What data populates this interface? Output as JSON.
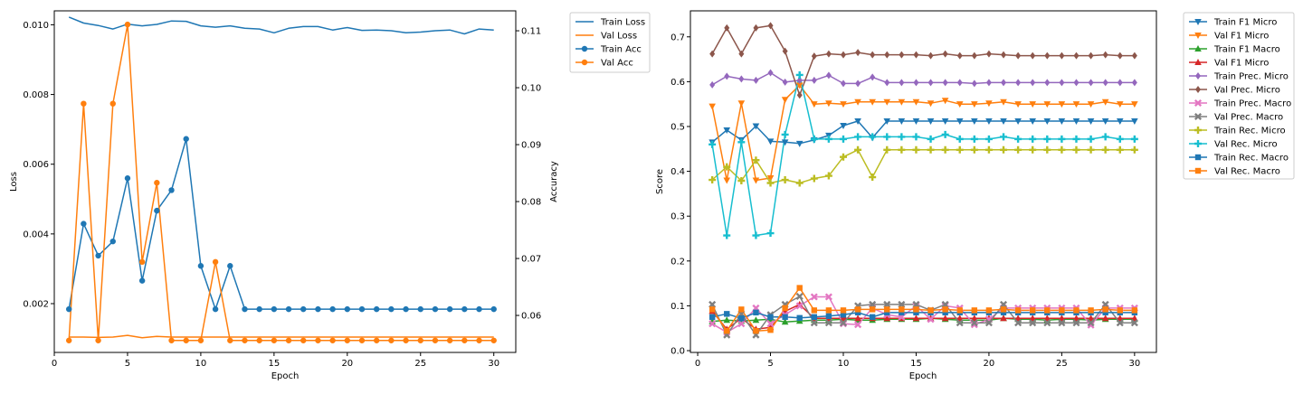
{
  "chart_data": [
    {
      "type": "line",
      "xlabel": "Epoch",
      "ylabel": "Loss",
      "y2label": "Accuracy",
      "xlim": [
        0,
        31.5
      ],
      "ylim": [
        0.0006,
        0.0104
      ],
      "y2lim": [
        0.0535,
        0.1135
      ],
      "xticks": [
        0,
        5,
        10,
        15,
        20,
        25,
        30
      ],
      "yticks": [
        0.002,
        0.004,
        0.006,
        0.008,
        0.01
      ],
      "ytick_labels": [
        "0.002",
        "0.004",
        "0.006",
        "0.008",
        "0.010"
      ],
      "y2ticks": [
        0.06,
        0.07,
        0.08,
        0.09,
        0.1,
        0.11
      ],
      "y2tick_labels": [
        "0.06",
        "0.07",
        "0.08",
        "0.09",
        "0.10",
        "0.11"
      ],
      "x": [
        1,
        2,
        3,
        4,
        5,
        6,
        7,
        8,
        9,
        10,
        11,
        12,
        13,
        14,
        15,
        16,
        17,
        18,
        19,
        20,
        21,
        22,
        23,
        24,
        25,
        26,
        27,
        28,
        29,
        30
      ],
      "legend_position": "outside-top-right",
      "series": [
        {
          "name": "Train Loss",
          "axis": "left",
          "color": "#1f77b4",
          "marker": "none",
          "values": [
            0.01022,
            0.01005,
            0.00998,
            0.00988,
            0.01002,
            0.00997,
            0.01001,
            0.01011,
            0.0101,
            0.00997,
            0.00993,
            0.00997,
            0.0099,
            0.00988,
            0.00977,
            0.0099,
            0.00995,
            0.00995,
            0.00985,
            0.00992,
            0.00984,
            0.00985,
            0.00983,
            0.00977,
            0.00979,
            0.00983,
            0.00985,
            0.00974,
            0.00988,
            0.00985
          ]
        },
        {
          "name": "Val Loss",
          "axis": "left",
          "color": "#ff7f0e",
          "marker": "none",
          "values": [
            0.00104,
            0.00104,
            0.00103,
            0.00104,
            0.00109,
            0.00102,
            0.00106,
            0.00104,
            0.00104,
            0.00104,
            0.00104,
            0.00104,
            0.00104,
            0.00104,
            0.00104,
            0.00104,
            0.00104,
            0.00104,
            0.00104,
            0.00104,
            0.00104,
            0.00104,
            0.00104,
            0.00104,
            0.00104,
            0.00104,
            0.00104,
            0.00104,
            0.00104,
            0.00104
          ]
        },
        {
          "name": "Train Acc",
          "axis": "right",
          "color": "#1f77b4",
          "marker": "circle",
          "values": [
            0.0611,
            0.0761,
            0.0705,
            0.073,
            0.0841,
            0.0661,
            0.0784,
            0.082,
            0.091,
            0.0687,
            0.0611,
            0.0687,
            0.0611,
            0.0611,
            0.0611,
            0.0611,
            0.0611,
            0.0611,
            0.0611,
            0.0611,
            0.0611,
            0.0611,
            0.0611,
            0.0611,
            0.0611,
            0.0611,
            0.0611,
            0.0611,
            0.0611,
            0.0611
          ]
        },
        {
          "name": "Val Acc",
          "axis": "right",
          "color": "#ff7f0e",
          "marker": "circle",
          "values": [
            0.0556,
            0.0972,
            0.0556,
            0.0972,
            0.1111,
            0.0694,
            0.0833,
            0.0556,
            0.0556,
            0.0556,
            0.0694,
            0.0556,
            0.0556,
            0.0556,
            0.0556,
            0.0556,
            0.0556,
            0.0556,
            0.0556,
            0.0556,
            0.0556,
            0.0556,
            0.0556,
            0.0556,
            0.0556,
            0.0556,
            0.0556,
            0.0556,
            0.0556,
            0.0556
          ]
        }
      ]
    },
    {
      "type": "line",
      "xlabel": "Epoch",
      "ylabel": "Score",
      "xlim": [
        -0.5,
        31.5
      ],
      "ylim": [
        -0.004,
        0.758
      ],
      "xticks": [
        0,
        5,
        10,
        15,
        20,
        25,
        30
      ],
      "yticks": [
        0.0,
        0.1,
        0.2,
        0.3,
        0.4,
        0.5,
        0.6,
        0.7
      ],
      "ytick_labels": [
        "0.0",
        "0.1",
        "0.2",
        "0.3",
        "0.4",
        "0.5",
        "0.6",
        "0.7"
      ],
      "x": [
        1,
        2,
        3,
        4,
        5,
        6,
        7,
        8,
        9,
        10,
        11,
        12,
        13,
        14,
        15,
        16,
        17,
        18,
        19,
        20,
        21,
        22,
        23,
        24,
        25,
        26,
        27,
        28,
        29,
        30
      ],
      "legend_position": "outside-top-right",
      "series": [
        {
          "name": "Train F1 Micro",
          "color": "#1f77b4",
          "marker": "tri-down",
          "values": [
            0.465,
            0.492,
            0.47,
            0.501,
            0.467,
            0.465,
            0.462,
            0.47,
            0.48,
            0.502,
            0.512,
            0.475,
            0.512,
            0.512,
            0.512,
            0.512,
            0.512,
            0.512,
            0.512,
            0.512,
            0.512,
            0.512,
            0.512,
            0.512,
            0.512,
            0.512,
            0.512,
            0.512,
            0.512,
            0.512
          ]
        },
        {
          "name": "Val F1 Micro",
          "color": "#ff7f0e",
          "marker": "tri-down",
          "values": [
            0.545,
            0.38,
            0.552,
            0.38,
            0.385,
            0.56,
            0.592,
            0.55,
            0.552,
            0.55,
            0.555,
            0.555,
            0.555,
            0.555,
            0.555,
            0.552,
            0.558,
            0.55,
            0.55,
            0.552,
            0.555,
            0.55,
            0.55,
            0.55,
            0.55,
            0.55,
            0.55,
            0.555,
            0.55,
            0.55
          ]
        },
        {
          "name": "Train F1 Macro",
          "color": "#2ca02c",
          "marker": "tri-up",
          "values": [
            0.065,
            0.068,
            0.066,
            0.068,
            0.07,
            0.064,
            0.066,
            0.068,
            0.068,
            0.07,
            0.068,
            0.068,
            0.07,
            0.07,
            0.07,
            0.072,
            0.07,
            0.068,
            0.068,
            0.068,
            0.072,
            0.07,
            0.07,
            0.068,
            0.07,
            0.07,
            0.068,
            0.07,
            0.07,
            0.07
          ]
        },
        {
          "name": "Val F1 Micro",
          "color": "#d62728",
          "marker": "tri-up",
          "values": [
            0.088,
            0.048,
            0.072,
            0.048,
            0.052,
            0.088,
            0.103,
            0.072,
            0.072,
            0.072,
            0.072,
            0.072,
            0.072,
            0.072,
            0.072,
            0.072,
            0.072,
            0.072,
            0.072,
            0.072,
            0.072,
            0.072,
            0.072,
            0.072,
            0.072,
            0.072,
            0.072,
            0.072,
            0.072,
            0.072
          ]
        },
        {
          "name": "Train Prec. Micro",
          "color": "#9467bd",
          "marker": "diamond",
          "values": [
            0.593,
            0.612,
            0.606,
            0.603,
            0.62,
            0.599,
            0.603,
            0.603,
            0.614,
            0.596,
            0.596,
            0.61,
            0.598,
            0.598,
            0.598,
            0.598,
            0.598,
            0.598,
            0.596,
            0.598,
            0.598,
            0.598,
            0.598,
            0.598,
            0.598,
            0.598,
            0.598,
            0.598,
            0.598,
            0.598
          ]
        },
        {
          "name": "Val Prec. Micro",
          "color": "#8c564b",
          "marker": "diamond",
          "values": [
            0.662,
            0.72,
            0.662,
            0.72,
            0.725,
            0.668,
            0.57,
            0.657,
            0.662,
            0.66,
            0.665,
            0.66,
            0.66,
            0.66,
            0.66,
            0.658,
            0.662,
            0.658,
            0.658,
            0.662,
            0.66,
            0.658,
            0.658,
            0.658,
            0.658,
            0.658,
            0.658,
            0.66,
            0.658,
            0.658
          ]
        },
        {
          "name": "Train Prec. Macro",
          "color": "#e377c2",
          "marker": "x",
          "values": [
            0.06,
            0.041,
            0.06,
            0.095,
            0.06,
            0.08,
            0.1,
            0.12,
            0.12,
            0.06,
            0.058,
            0.095,
            0.08,
            0.075,
            0.1,
            0.07,
            0.1,
            0.095,
            0.058,
            0.07,
            0.095,
            0.095,
            0.095,
            0.095,
            0.095,
            0.095,
            0.057,
            0.095,
            0.095,
            0.095
          ]
        },
        {
          "name": "Val Prec. Macro",
          "color": "#7f7f7f",
          "marker": "x",
          "values": [
            0.103,
            0.035,
            0.082,
            0.035,
            0.08,
            0.103,
            0.121,
            0.062,
            0.062,
            0.062,
            0.1,
            0.103,
            0.103,
            0.103,
            0.103,
            0.09,
            0.103,
            0.062,
            0.062,
            0.062,
            0.103,
            0.062,
            0.062,
            0.062,
            0.062,
            0.062,
            0.062,
            0.103,
            0.062,
            0.062
          ]
        },
        {
          "name": "Train Rec. Micro",
          "color": "#bcbd22",
          "marker": "plus",
          "values": [
            0.381,
            0.41,
            0.379,
            0.425,
            0.374,
            0.381,
            0.374,
            0.384,
            0.39,
            0.432,
            0.448,
            0.387,
            0.448,
            0.448,
            0.448,
            0.448,
            0.448,
            0.448,
            0.448,
            0.448,
            0.448,
            0.448,
            0.448,
            0.448,
            0.448,
            0.448,
            0.448,
            0.448,
            0.448,
            0.448
          ]
        },
        {
          "name": "Val Rec. Micro",
          "color": "#17becf",
          "marker": "plus",
          "values": [
            0.46,
            0.257,
            0.465,
            0.257,
            0.262,
            0.482,
            0.615,
            0.472,
            0.472,
            0.472,
            0.477,
            0.477,
            0.477,
            0.477,
            0.477,
            0.472,
            0.482,
            0.472,
            0.472,
            0.472,
            0.477,
            0.472,
            0.472,
            0.472,
            0.472,
            0.472,
            0.472,
            0.477,
            0.472,
            0.472
          ]
        },
        {
          "name": "Train Rec. Macro",
          "color": "#1f77b4",
          "marker": "square",
          "values": [
            0.075,
            0.082,
            0.072,
            0.085,
            0.075,
            0.075,
            0.073,
            0.075,
            0.077,
            0.08,
            0.085,
            0.075,
            0.085,
            0.085,
            0.085,
            0.085,
            0.085,
            0.085,
            0.085,
            0.085,
            0.085,
            0.085,
            0.085,
            0.085,
            0.085,
            0.085,
            0.085,
            0.085,
            0.085,
            0.085
          ]
        },
        {
          "name": "Val Rec. Macro",
          "color": "#ff7f0e",
          "marker": "square",
          "values": [
            0.092,
            0.044,
            0.092,
            0.044,
            0.046,
            0.095,
            0.14,
            0.09,
            0.09,
            0.09,
            0.092,
            0.092,
            0.092,
            0.092,
            0.092,
            0.09,
            0.092,
            0.09,
            0.09,
            0.09,
            0.092,
            0.09,
            0.09,
            0.09,
            0.09,
            0.09,
            0.09,
            0.092,
            0.09,
            0.09
          ]
        }
      ]
    }
  ]
}
